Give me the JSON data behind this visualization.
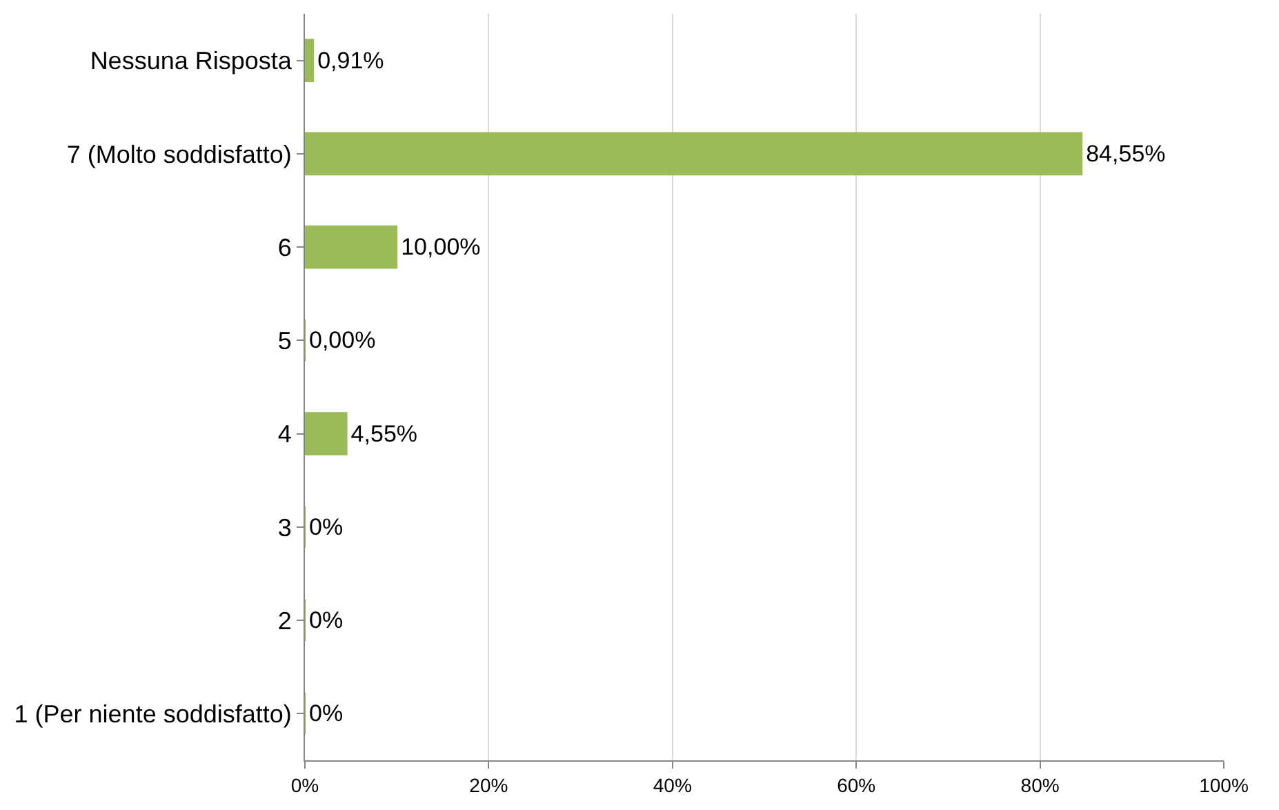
{
  "chart_data": {
    "type": "bar",
    "orientation": "horizontal",
    "categories": [
      "Nessuna Risposta",
      "7 (Molto soddisfatto)",
      "6",
      "5",
      "4",
      "3",
      "2",
      "1 (Per niente soddisfatto)"
    ],
    "values": [
      0.91,
      84.55,
      10.0,
      0.0,
      4.55,
      0,
      0,
      0
    ],
    "value_labels": [
      "0,91%",
      "84,55%",
      "10,00%",
      "0,00%",
      "4,55%",
      "0%",
      "0%",
      "0%"
    ],
    "color": "#9bbb59",
    "xlim": [
      0,
      100
    ],
    "xticks": [
      {
        "value": 0,
        "label": "0%"
      },
      {
        "value": 20,
        "label": "20%"
      },
      {
        "value": 40,
        "label": "40%"
      },
      {
        "value": 60,
        "label": "60%"
      },
      {
        "value": 80,
        "label": "80%"
      },
      {
        "value": 100,
        "label": "100%"
      }
    ],
    "grid": "x",
    "legend": false
  }
}
